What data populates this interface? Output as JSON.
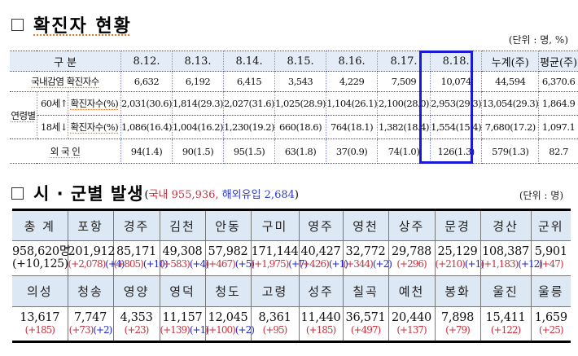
{
  "section1": {
    "title": "확진자 현황",
    "unit": "(단위 : 명, %)",
    "header": {
      "category": "구 분",
      "dates": [
        "8.12.",
        "8.13.",
        "8.14.",
        "8.15.",
        "8.16.",
        "8.17.",
        "8.18."
      ],
      "cumulative": "누계(주)",
      "average": "평균(주)"
    },
    "rows": {
      "domestic": {
        "label": "국내감염 확진자수",
        "values": [
          "6,632",
          "6,192",
          "6,415",
          "3,543",
          "4,229",
          "7,509",
          "10,074"
        ],
        "cumulative": "44,594",
        "average": "6,370.6"
      },
      "age_group_label": "연령별",
      "age60": {
        "age": "60세↑",
        "label": "확진자수(%)",
        "values": [
          "2,031(30.6)",
          "1,814(29.3)",
          "2,027(31.6)",
          "1,025(28.9)",
          "1,104(26.1)",
          "2,100(28.0)",
          "2,953(29.3)"
        ],
        "cumulative": "13,054(29.3)",
        "average": "1,864.9"
      },
      "age18": {
        "age": "18세↓",
        "label": "확진자수(%)",
        "values": [
          "1,086(16.4)",
          "1,004(16.2)",
          "1,230(19.2)",
          "660(18.6)",
          "764(18.1)",
          "1,382(18.4)",
          "1,554(15.4)"
        ],
        "cumulative": "7,680(17.2)",
        "average": "1,097.1"
      },
      "foreigner": {
        "label": "외 국 인",
        "values": [
          "94(1.4)",
          "90(1.5)",
          "95(1.5)",
          "63(1.8)",
          "37(0.9)",
          "74(1.0)",
          "126(1.3)"
        ],
        "cumulative": "579(1.3)",
        "average": "82.7"
      }
    },
    "highlight_color": "#1a1ad6"
  },
  "section2": {
    "title": "시 · 군별 발생",
    "subtitle_open": "(",
    "subtitle_domestic": "국내 955,936,",
    "subtitle_overseas": "해외유입 2,684",
    "subtitle_close": ")",
    "unit": "(단위 : 명)",
    "row1": [
      {
        "name": "총 계",
        "value": "958,620명",
        "new": "(+10,125)",
        "overseas": ""
      },
      {
        "name": "포항",
        "value": "201,912",
        "new": "(+2,078)",
        "overseas": "(+4)"
      },
      {
        "name": "경주",
        "value": "85,171",
        "new": "(+805)",
        "overseas": "(+10)"
      },
      {
        "name": "김천",
        "value": "49,308",
        "new": "(+583)",
        "overseas": "(+4)"
      },
      {
        "name": "안동",
        "value": "57,982",
        "new": "(+467)",
        "overseas": "(+5)"
      },
      {
        "name": "구미",
        "value": "171,144",
        "new": "(+1,975)",
        "overseas": "(+7)"
      },
      {
        "name": "영주",
        "value": "40,427",
        "new": "(+426)",
        "overseas": "(+1)"
      },
      {
        "name": "영천",
        "value": "32,772",
        "new": "(+344)",
        "overseas": "(+2)"
      },
      {
        "name": "상주",
        "value": "29,788",
        "new": "(+296)",
        "overseas": ""
      },
      {
        "name": "문경",
        "value": "25,129",
        "new": "(+210)",
        "overseas": "(+1)"
      },
      {
        "name": "경산",
        "value": "108,387",
        "new": "(+1,183)",
        "overseas": "(+12)"
      },
      {
        "name": "군위",
        "value": "5,901",
        "new": "(+47)",
        "overseas": ""
      }
    ],
    "row2": [
      {
        "name": "의성",
        "value": "13,617",
        "new": "(+185)",
        "overseas": ""
      },
      {
        "name": "청송",
        "value": "7,747",
        "new": "(+73)",
        "overseas": "(+2)"
      },
      {
        "name": "영양",
        "value": "4,353",
        "new": "(+23)",
        "overseas": ""
      },
      {
        "name": "영덕",
        "value": "11,157",
        "new": "(+139)",
        "overseas": "(+1)"
      },
      {
        "name": "청도",
        "value": "12,045",
        "new": "(+100)",
        "overseas": "(+2)"
      },
      {
        "name": "고령",
        "value": "8,361",
        "new": "(+95)",
        "overseas": ""
      },
      {
        "name": "성주",
        "value": "11,440",
        "new": "(+185)",
        "overseas": ""
      },
      {
        "name": "칠곡",
        "value": "36,571",
        "new": "(+497)",
        "overseas": ""
      },
      {
        "name": "예천",
        "value": "20,440",
        "new": "(+137)",
        "overseas": ""
      },
      {
        "name": "봉화",
        "value": "7,898",
        "new": "(+79)",
        "overseas": ""
      },
      {
        "name": "울진",
        "value": "15,411",
        "new": "(+122)",
        "overseas": ""
      },
      {
        "name": "울릉",
        "value": "1,659",
        "new": "(+25)",
        "overseas": ""
      }
    ],
    "colors": {
      "domestic": "#c8333f",
      "overseas": "#1f2ad6",
      "header_bg": "#dde8f5"
    }
  }
}
